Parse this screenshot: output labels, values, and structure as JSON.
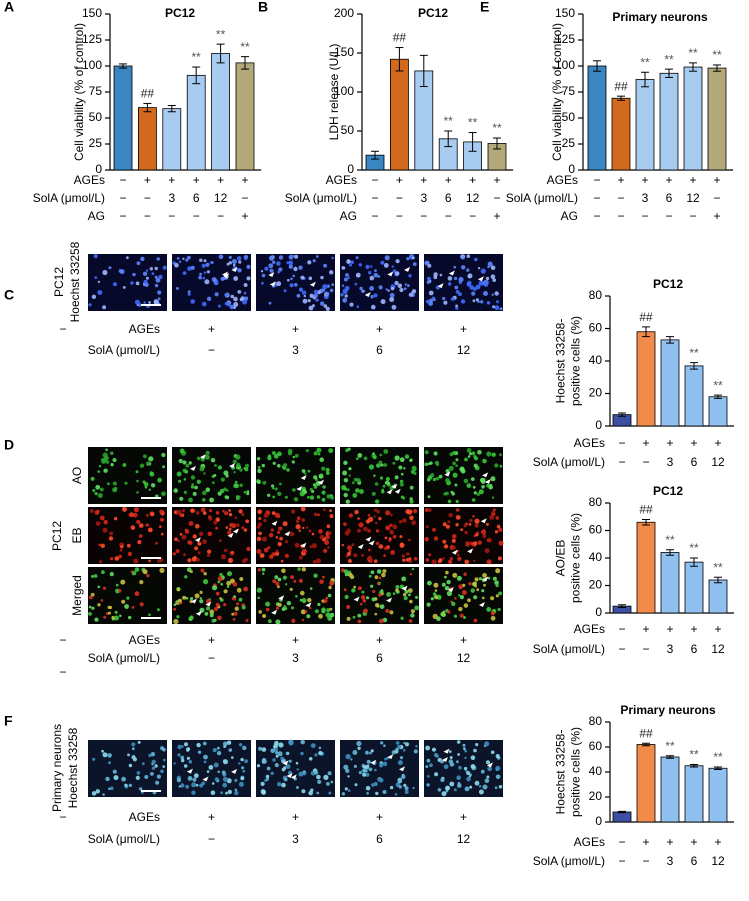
{
  "figure": {
    "labels": [
      "A",
      "B",
      "E",
      "C",
      "D",
      "F"
    ],
    "image_panels": [
      {
        "labels": [
          "PC12",
          "Hoechst 33258"
        ],
        "rows": [
          "Hoechst 33258"
        ],
        "treatments": [
          {
            "label": "AGEs",
            "values": [
              "−",
              "+",
              "+",
              "+",
              "+"
            ]
          },
          {
            "label": "SolA (μmol/L)",
            "values": [
              null,
              "−",
              "3",
              "6",
              "12"
            ]
          }
        ]
      },
      {
        "labels": [
          "PC12"
        ],
        "rows": [
          "AO",
          "EB",
          "Merged"
        ],
        "treatments": [
          {
            "label": "AGEs",
            "values": [
              "−",
              "+",
              "+",
              "+",
              "+"
            ]
          },
          {
            "label": "SolA (μmol/L)",
            "values": [
              "−",
              "−",
              "3",
              "6",
              "12"
            ]
          }
        ]
      },
      {
        "labels": [
          "Primary neurons",
          "Hoechst 33258"
        ],
        "rows": [
          "Hoechst 33258"
        ],
        "treatments": [
          {
            "label": "AGEs",
            "values": [
              "−",
              "+",
              "+",
              "+",
              "+"
            ]
          },
          {
            "label": "SolA (μmol/L)",
            "values": [
              null,
              "−",
              "3",
              "6",
              "12"
            ]
          }
        ]
      }
    ]
  },
  "chart_data": [
    {
      "type": "bar",
      "title": "PC12",
      "ylabel": [
        "Cell viability (% of control)"
      ],
      "ylim": [
        0,
        150
      ],
      "yticks": [
        0,
        25,
        50,
        75,
        100,
        125,
        150
      ],
      "categories": [
        null,
        null,
        null,
        null,
        null,
        null
      ],
      "values": [
        100,
        60,
        59,
        91,
        112,
        103
      ],
      "errors": [
        2,
        4,
        3,
        8,
        9,
        6
      ],
      "colors": [
        "#3a86c0",
        "#d2691e",
        "#a8ccf0",
        "#a8ccf0",
        "#a8ccf0",
        "#b3a87a"
      ],
      "annotations": [
        null,
        "##",
        null,
        "**",
        "**",
        "**"
      ],
      "treatments": [
        {
          "label": "AGEs",
          "values": [
            "−",
            "+",
            "+",
            "+",
            "+",
            "+"
          ]
        },
        {
          "label": "SolA (μmol/L)",
          "values": [
            "−",
            "−",
            "3",
            "6",
            "12",
            "−"
          ]
        },
        {
          "label": "AG",
          "values": [
            "−",
            "−",
            "−",
            "−",
            "−",
            "+"
          ]
        }
      ]
    },
    {
      "type": "bar",
      "title": "PC12",
      "ylabel": [
        "LDH release (U/L)"
      ],
      "ylim": [
        0,
        200
      ],
      "yticks": [
        0,
        50,
        100,
        150,
        200
      ],
      "categories": [
        null,
        null,
        null,
        null,
        null,
        null
      ],
      "values": [
        19,
        142,
        127,
        40,
        36,
        34
      ],
      "errors": [
        5,
        15,
        20,
        10,
        12,
        7
      ],
      "colors": [
        "#3a86c0",
        "#d2691e",
        "#a8ccf0",
        "#a8ccf0",
        "#a8ccf0",
        "#b3a87a"
      ],
      "annotations": [
        null,
        "##",
        null,
        "**",
        "**",
        "**"
      ],
      "treatments": [
        {
          "label": "AGEs",
          "values": [
            "−",
            "+",
            "+",
            "+",
            "+",
            "+"
          ]
        },
        {
          "label": "SolA (μmol/L)",
          "values": [
            "−",
            "−",
            "3",
            "6",
            "12",
            "−"
          ]
        },
        {
          "label": "AG",
          "values": [
            "−",
            "−",
            "−",
            "−",
            "−",
            "+"
          ]
        }
      ]
    },
    {
      "type": "bar",
      "title": "Primary neurons",
      "ylabel": [
        "Cell viability (% of control)"
      ],
      "ylim": [
        0,
        150
      ],
      "yticks": [
        0,
        25,
        50,
        75,
        100,
        125,
        150
      ],
      "categories": [
        null,
        null,
        null,
        null,
        null,
        null
      ],
      "values": [
        100,
        69,
        87,
        93,
        99,
        98
      ],
      "errors": [
        5,
        2,
        7,
        4,
        4,
        3
      ],
      "colors": [
        "#3a86c0",
        "#d2691e",
        "#a8ccf0",
        "#a8ccf0",
        "#a8ccf0",
        "#b3a87a"
      ],
      "annotations": [
        null,
        "##",
        "**",
        "**",
        "**",
        "**"
      ],
      "treatments": [
        {
          "label": "AGEs",
          "values": [
            "−",
            "+",
            "+",
            "+",
            "+",
            "+"
          ]
        },
        {
          "label": "SolA (μmol/L)",
          "values": [
            "−",
            "−",
            "3",
            "6",
            "12",
            "−"
          ]
        },
        {
          "label": "AG",
          "values": [
            "−",
            "−",
            "−",
            "−",
            "−",
            "+"
          ]
        }
      ]
    },
    {
      "type": "bar",
      "title": "PC12",
      "ylabel": [
        "Hoechst 33258-",
        "positive cells (%)"
      ],
      "ylim": [
        0,
        80
      ],
      "yticks": [
        0,
        20,
        40,
        60,
        80
      ],
      "categories": [
        null,
        null,
        null,
        null,
        null
      ],
      "values": [
        7,
        58,
        53,
        37,
        18
      ],
      "errors": [
        1,
        3,
        2,
        2,
        1
      ],
      "colors": [
        "#3b4fa3",
        "#f28b4a",
        "#8fc0ef",
        "#8fc0ef",
        "#8fc0ef"
      ],
      "annotations": [
        null,
        "##",
        null,
        "**",
        "**"
      ],
      "treatments": [
        {
          "label": "AGEs",
          "values": [
            "−",
            "+",
            "+",
            "+",
            "+"
          ]
        },
        {
          "label": "SolA (μmol/L)",
          "values": [
            "−",
            "−",
            "3",
            "6",
            "12"
          ]
        }
      ]
    },
    {
      "type": "bar",
      "title": "PC12",
      "ylabel": [
        "AO/EB",
        "positive cells (%)"
      ],
      "ylim": [
        0,
        80
      ],
      "yticks": [
        0,
        20,
        40,
        60,
        80
      ],
      "categories": [
        null,
        null,
        null,
        null,
        null
      ],
      "values": [
        5,
        66,
        44,
        37,
        24
      ],
      "errors": [
        1,
        2,
        2,
        3,
        2
      ],
      "colors": [
        "#3b4fa3",
        "#f28b4a",
        "#8fc0ef",
        "#8fc0ef",
        "#8fc0ef"
      ],
      "annotations": [
        null,
        "##",
        "**",
        "**",
        "**"
      ],
      "treatments": [
        {
          "label": "AGEs",
          "values": [
            "−",
            "+",
            "+",
            "+",
            "+"
          ]
        },
        {
          "label": "SolA (μmol/L)",
          "values": [
            "−",
            "−",
            "3",
            "6",
            "12"
          ]
        }
      ]
    },
    {
      "type": "bar",
      "title": "Primary neurons",
      "ylabel": [
        "Hoechst 33258-",
        "positive cells (%)"
      ],
      "ylim": [
        0,
        80
      ],
      "yticks": [
        0,
        20,
        40,
        60,
        80
      ],
      "categories": [
        null,
        null,
        null,
        null,
        null
      ],
      "values": [
        8,
        62,
        52,
        45,
        43
      ],
      "errors": [
        0.5,
        1,
        1,
        1,
        1
      ],
      "colors": [
        "#3b4fa3",
        "#f28b4a",
        "#8fc0ef",
        "#8fc0ef",
        "#8fc0ef"
      ],
      "annotations": [
        null,
        "##",
        "**",
        "**",
        "**"
      ],
      "treatments": [
        {
          "label": "AGEs",
          "values": [
            "−",
            "+",
            "+",
            "+",
            "+"
          ]
        },
        {
          "label": "SolA (μmol/L)",
          "values": [
            "−",
            "−",
            "3",
            "6",
            "12"
          ]
        }
      ]
    }
  ]
}
